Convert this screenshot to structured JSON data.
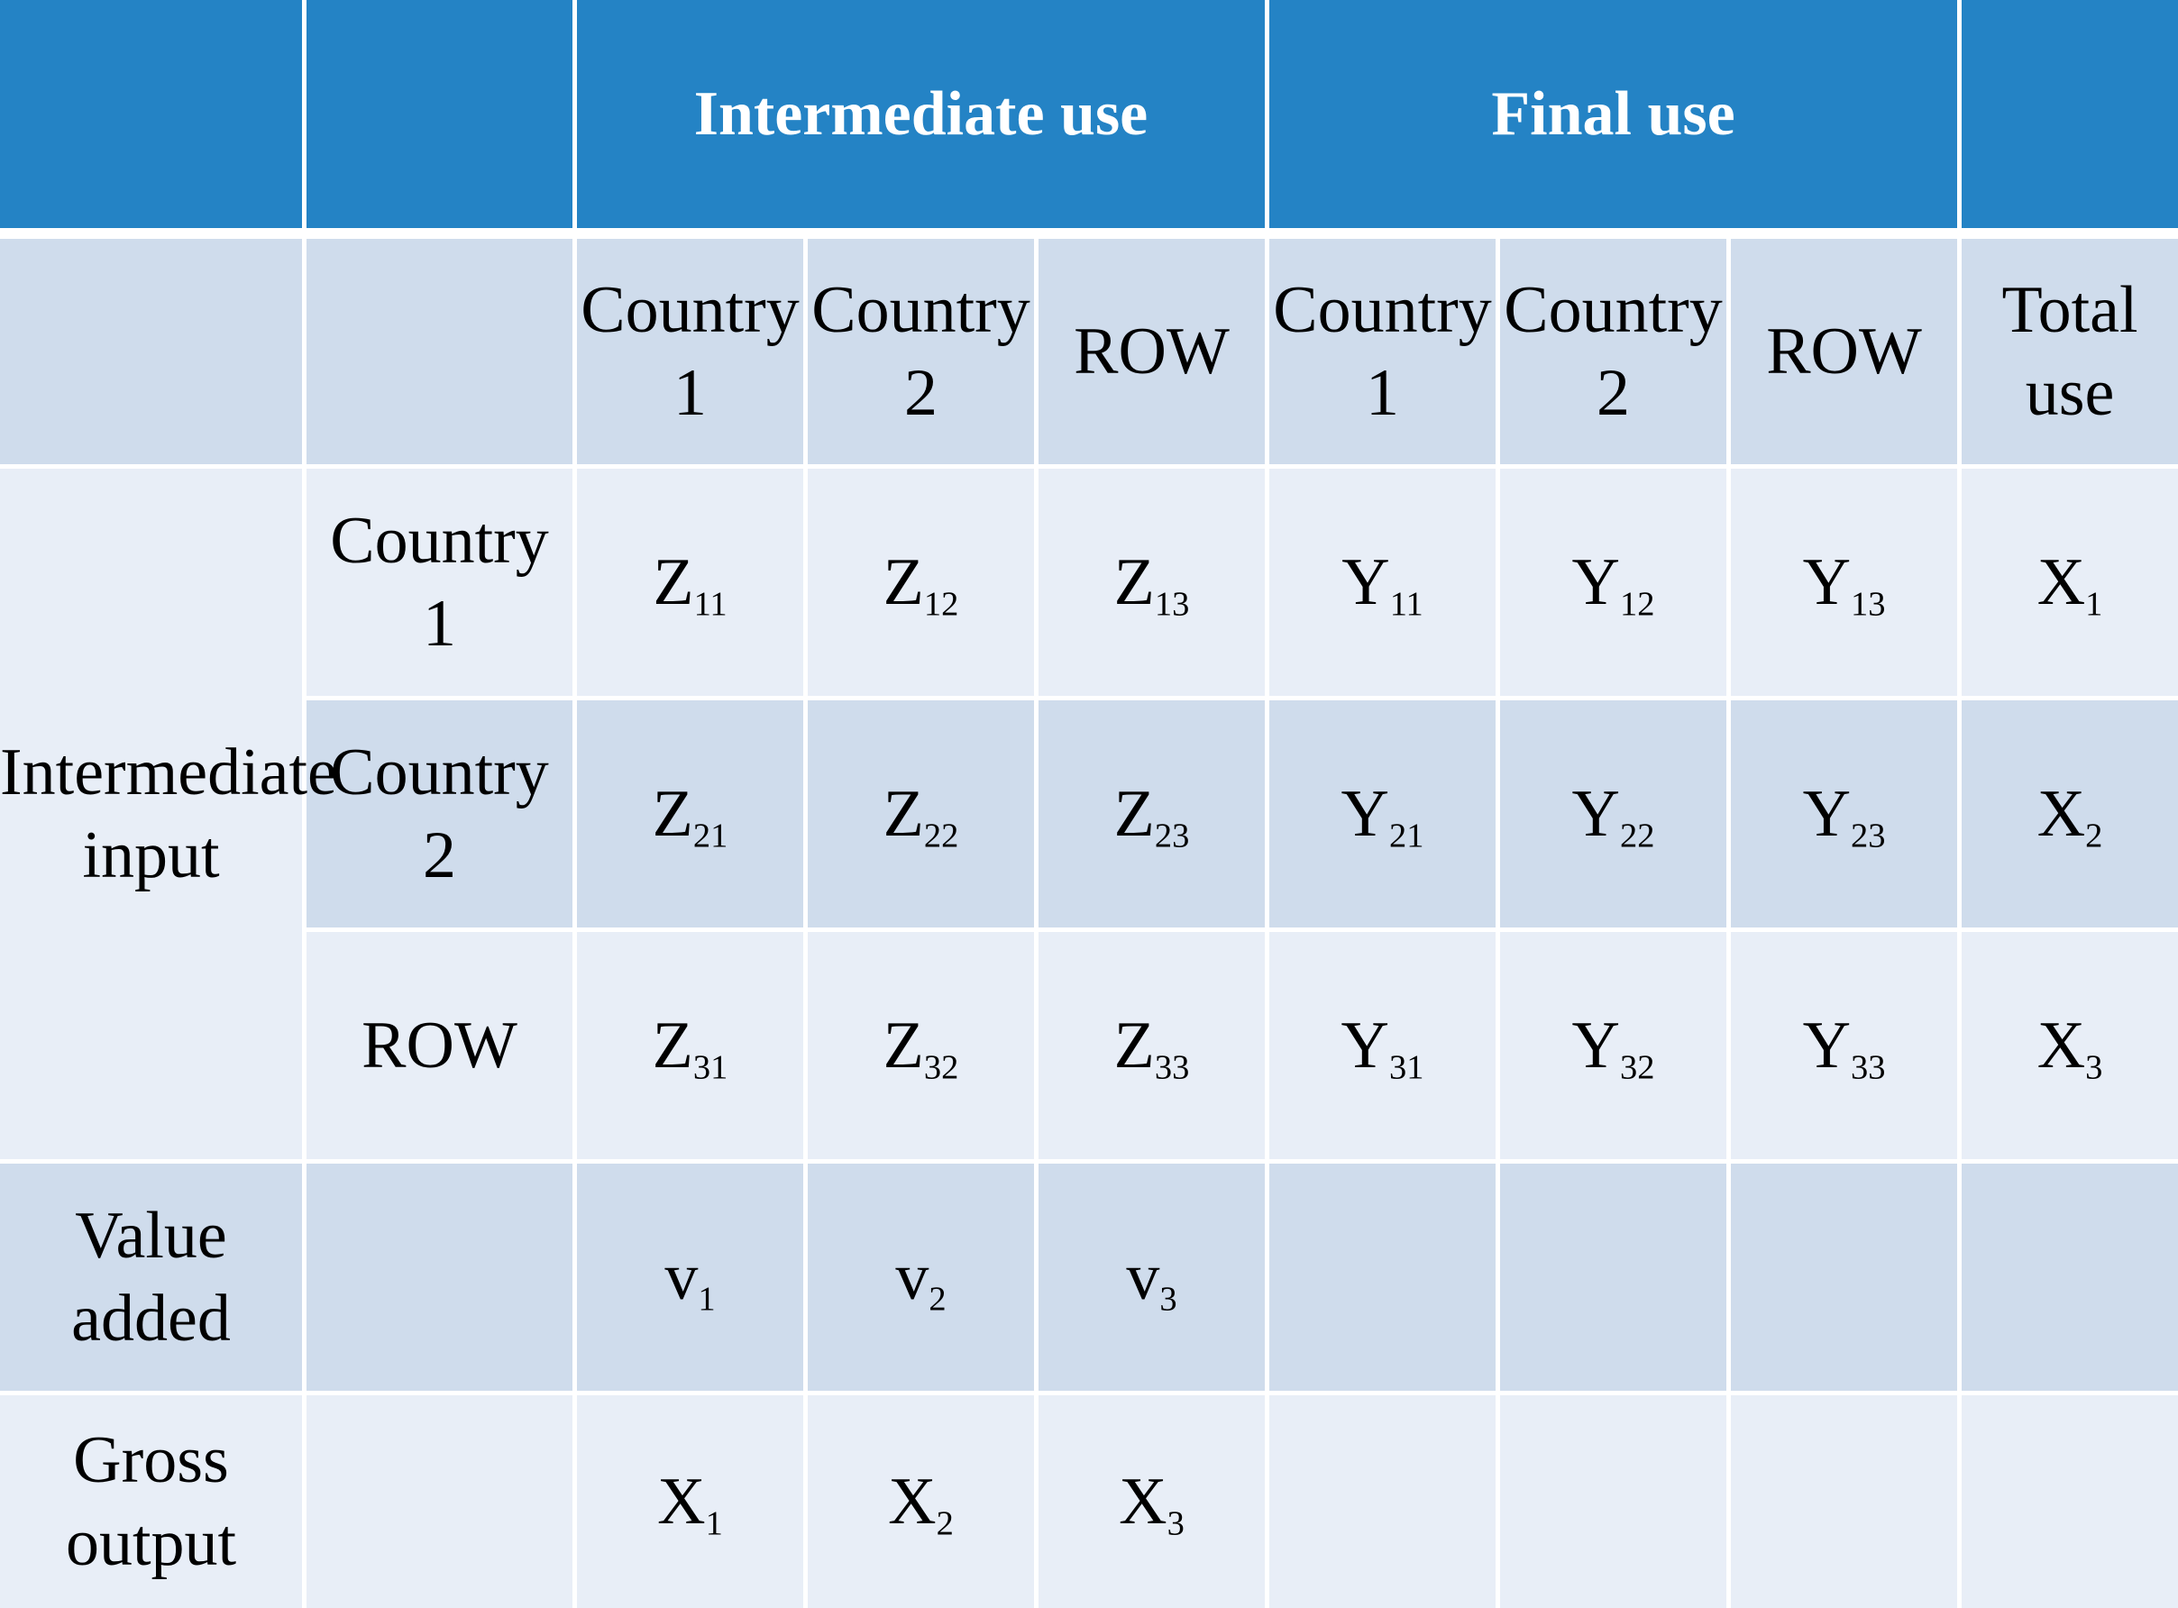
{
  "header": {
    "intermediate_use": "Intermediate use",
    "final_use": "Final use"
  },
  "subheader": {
    "intermediate_cols": [
      {
        "line1": "Country",
        "line2": "1"
      },
      {
        "line1": "Country",
        "line2": "2"
      },
      {
        "line1": "ROW",
        "line2": ""
      }
    ],
    "final_cols": [
      {
        "line1": "Country",
        "line2": "1"
      },
      {
        "line1": "Country",
        "line2": "2"
      },
      {
        "line1": "ROW",
        "line2": ""
      }
    ],
    "total_use": "Total use"
  },
  "intermediate_input": {
    "label_line1": "Intermediate",
    "label_line2": "input",
    "rows": [
      {
        "label": "Country 1",
        "z": [
          {
            "s": "Z",
            "i": "11"
          },
          {
            "s": "Z",
            "i": "12"
          },
          {
            "s": "Z",
            "i": "13"
          }
        ],
        "y": [
          {
            "s": "Y",
            "i": "11"
          },
          {
            "s": "Y",
            "i": "12"
          },
          {
            "s": "Y",
            "i": "13"
          }
        ],
        "x": {
          "s": "X",
          "i": "1"
        }
      },
      {
        "label": "Country 2",
        "z": [
          {
            "s": "Z",
            "i": "21"
          },
          {
            "s": "Z",
            "i": "22"
          },
          {
            "s": "Z",
            "i": "23"
          }
        ],
        "y": [
          {
            "s": "Y",
            "i": "21"
          },
          {
            "s": "Y",
            "i": "22"
          },
          {
            "s": "Y",
            "i": "23"
          }
        ],
        "x": {
          "s": "X",
          "i": "2"
        }
      },
      {
        "label": "ROW",
        "z": [
          {
            "s": "Z",
            "i": "31"
          },
          {
            "s": "Z",
            "i": "32"
          },
          {
            "s": "Z",
            "i": "33"
          }
        ],
        "y": [
          {
            "s": "Y",
            "i": "31"
          },
          {
            "s": "Y",
            "i": "32"
          },
          {
            "s": "Y",
            "i": "33"
          }
        ],
        "x": {
          "s": "X",
          "i": "3"
        }
      }
    ]
  },
  "value_added": {
    "label": "Value added",
    "values": [
      {
        "s": "v",
        "i": "1"
      },
      {
        "s": "v",
        "i": "2"
      },
      {
        "s": "v",
        "i": "3"
      }
    ]
  },
  "gross_output": {
    "label": "Gross output",
    "values": [
      {
        "s": "X",
        "i": "1"
      },
      {
        "s": "X",
        "i": "2"
      },
      {
        "s": "X",
        "i": "3"
      }
    ]
  },
  "colors": {
    "header_blue": "#2483c5",
    "band_dark": "#cfdcec",
    "band_light": "#e8eef7"
  }
}
